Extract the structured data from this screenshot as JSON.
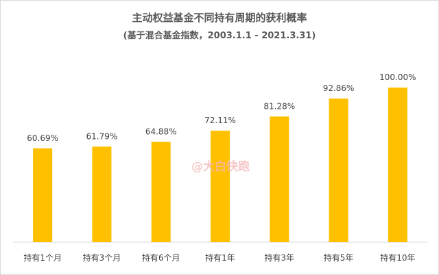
{
  "chart_data": {
    "type": "bar",
    "title": "主动权益基金不同持有周期的获利概率",
    "subtitle": "(基于混合基金指数，2003.1.1 - 2021.3.31)",
    "categories": [
      "持有1个月",
      "持有3个月",
      "持有6个月",
      "持有1年",
      "持有3年",
      "持有5年",
      "持有10年"
    ],
    "values": [
      60.69,
      61.79,
      64.88,
      72.11,
      81.28,
      92.86,
      100.0
    ],
    "data_labels": [
      "60.69%",
      "61.79%",
      "64.88%",
      "72.11%",
      "81.28%",
      "92.86%",
      "100.00%"
    ],
    "ylim": [
      0,
      100
    ],
    "bar_color": "#FFC000",
    "grid": false,
    "legend": "none"
  },
  "watermark": "@大白快跑"
}
